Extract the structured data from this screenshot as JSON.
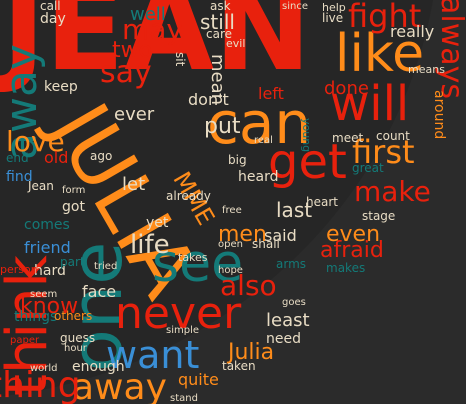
{
  "colors": {
    "background": "#2b2b2b",
    "disc": "#262626",
    "red": "#e8210d",
    "orange": "#ff8c1a",
    "teal": "#147a78",
    "blue": "#3a8fd6",
    "cream": "#e8dcc4",
    "darkred": "#b3170a"
  },
  "words": {
    "jean": "JEAN",
    "julia": "JULIA",
    "one": "one",
    "think": "think",
    "can": "can",
    "like": "like",
    "will": "will",
    "get": "get",
    "see": "see",
    "never": "never",
    "want": "want",
    "away": "away",
    "thing": "thing",
    "first": "first",
    "make": "make",
    "life": "life",
    "also": "also",
    "know": "know",
    "love": "love",
    "fight": "fight",
    "always": "always",
    "may": "may",
    "say": "say",
    "might": "might",
    "put": "put",
    "men": "men",
    "afraid": "afraid",
    "even": "even",
    "last": "last",
    "said": "said",
    "julia_small": "Julia",
    "well": "well",
    "still": "still",
    "two": "two",
    "done": "done",
    "really": "really",
    "let": "let",
    "ever": "ever",
    "left": "left",
    "face": "face",
    "least": "least",
    "quite": "quite",
    "enough": "enough",
    "mme": "MME",
    "mean": "mean",
    "dont": "don't",
    "friend": "friend",
    "comes": "comes",
    "hard": "hard",
    "things": "things",
    "others": "others",
    "guess": "guess",
    "need": "need",
    "jean_small": "Jean",
    "find": "find",
    "old": "old",
    "got": "got",
    "stage": "stage",
    "count": "count",
    "heart": "heart",
    "meet": "meet",
    "makes": "makes",
    "great": "great",
    "yet": "yet",
    "heard": "heard",
    "already": "already",
    "shall": "shall",
    "day": "day",
    "call": "call",
    "keep": "keep",
    "ask": "ask",
    "care": "care",
    "evil": "evil",
    "live": "live",
    "help": "help",
    "since": "since",
    "big": "big",
    "world": "world",
    "hour": "hour",
    "seem": "seem",
    "part": "part",
    "free": "free",
    "open": "open",
    "takes": "takes",
    "simple": "simple",
    "taken": "taken",
    "stand": "stand",
    "means": "means",
    "ago": "ago",
    "end": "end",
    "form": "form",
    "paper": "paper",
    "person": "person",
    "hope": "hope",
    "arms": "arms",
    "goes": "goes",
    "around": "around",
    "tried": "tried",
    "sit": "sit",
    "real": "real",
    "young": "young"
  }
}
